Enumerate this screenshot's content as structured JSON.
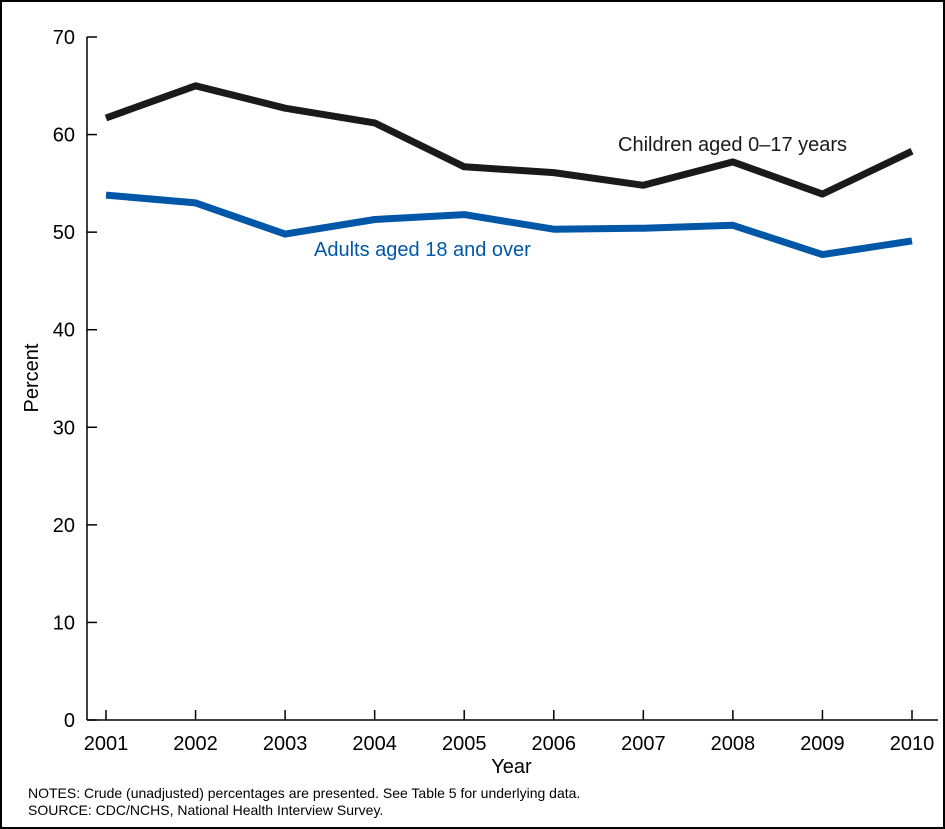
{
  "chart_data": {
    "type": "line",
    "xlabel": "Year",
    "ylabel": "Percent",
    "categories": [
      "2001",
      "2002",
      "2003",
      "2004",
      "2005",
      "2006",
      "2007",
      "2008",
      "2009",
      "2010"
    ],
    "ylim": [
      0,
      70
    ],
    "yticks": [
      "0",
      "10",
      "20",
      "30",
      "40",
      "50",
      "60",
      "70"
    ],
    "grid": false,
    "series": [
      {
        "name": "Children aged 0–17 years",
        "color": "#1a1a1a",
        "values": [
          61.7,
          65.0,
          62.7,
          61.2,
          56.7,
          56.1,
          54.8,
          57.2,
          53.9,
          58.3
        ]
      },
      {
        "name": "Adults aged 18 and over",
        "color": "#0057a8",
        "values": [
          53.8,
          53.0,
          49.8,
          51.3,
          51.8,
          50.3,
          50.4,
          50.7,
          47.7,
          49.1
        ]
      }
    ]
  },
  "notes": {
    "notes_line": "NOTES: Crude (unadjusted) percentages are presented.  See Table 5 for underlying data.",
    "source_line": "SOURCE: CDC/NCHS, National Health Interview Survey."
  }
}
